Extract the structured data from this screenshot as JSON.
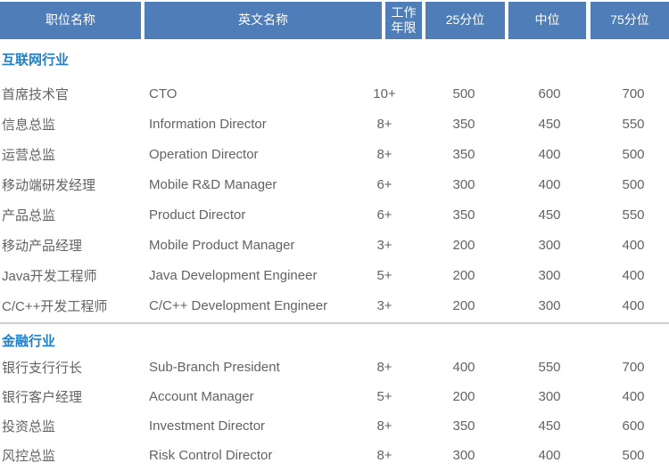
{
  "colors": {
    "header_bg": "#4e7db8",
    "header_text": "#ffffff",
    "section_title_text": "#2280c8",
    "body_text": "#636363",
    "divider": "#cfcfcf"
  },
  "table": {
    "columns": [
      {
        "label": "职位名称"
      },
      {
        "label": "英文名称"
      },
      {
        "label": "工作年限"
      },
      {
        "label": "25分位"
      },
      {
        "label": "中位"
      },
      {
        "label": "75分位"
      }
    ],
    "sections": [
      {
        "title": "互联网行业",
        "rows": [
          {
            "position": "首席技术官",
            "english": "CTO",
            "years": "10+",
            "p25": "500",
            "median": "600",
            "p75": "700"
          },
          {
            "position": "信息总监",
            "english": "Information Director",
            "years": "8+",
            "p25": "350",
            "median": "450",
            "p75": "550"
          },
          {
            "position": "运营总监",
            "english": "Operation Director",
            "years": "8+",
            "p25": "350",
            "median": "400",
            "p75": "500"
          },
          {
            "position": "移动端研发经理",
            "english": "Mobile R&D Manager",
            "years": "6+",
            "p25": "300",
            "median": "400",
            "p75": "500"
          },
          {
            "position": "产品总监",
            "english": "Product Director",
            "years": "6+",
            "p25": "350",
            "median": "450",
            "p75": "550"
          },
          {
            "position": "移动产品经理",
            "english": "Mobile Product Manager",
            "years": "3+",
            "p25": "200",
            "median": "300",
            "p75": "400"
          },
          {
            "position": "Java开发工程师",
            "english": "Java Development Engineer",
            "years": "5+",
            "p25": "200",
            "median": "300",
            "p75": "400"
          },
          {
            "position": "C/C++开发工程师",
            "english": "C/C++ Development Engineer",
            "years": "3+",
            "p25": "200",
            "median": "300",
            "p75": "400"
          }
        ]
      },
      {
        "title": "金融行业",
        "rows": [
          {
            "position": "银行支行行长",
            "english": "Sub-Branch President",
            "years": "8+",
            "p25": "400",
            "median": "550",
            "p75": "700"
          },
          {
            "position": "银行客户经理",
            "english": "Account Manager",
            "years": "5+",
            "p25": "200",
            "median": "300",
            "p75": "400"
          },
          {
            "position": "投资总监",
            "english": "Investment Director",
            "years": "8+",
            "p25": "350",
            "median": "450",
            "p75": "600"
          },
          {
            "position": "风控总监",
            "english": "Risk Control Director",
            "years": "8+",
            "p25": "300",
            "median": "400",
            "p75": "500"
          }
        ]
      }
    ]
  }
}
